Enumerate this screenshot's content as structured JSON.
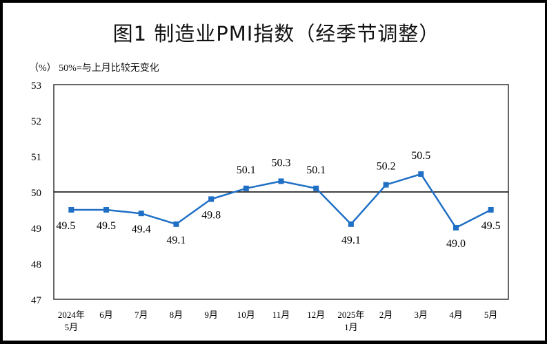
{
  "chart_data": {
    "type": "line",
    "title": "图1  制造业PMI指数（经季节调整）",
    "subtitle": "（%） 50%=与上月比较无变化",
    "categories": [
      [
        "2024年",
        "5月"
      ],
      [
        "6月"
      ],
      [
        "7月"
      ],
      [
        "8月"
      ],
      [
        "9月"
      ],
      [
        "10月"
      ],
      [
        "11月"
      ],
      [
        "12月"
      ],
      [
        "2025年",
        "1月"
      ],
      [
        "2月"
      ],
      [
        "3月"
      ],
      [
        "4月"
      ],
      [
        "5月"
      ]
    ],
    "series": [
      {
        "values": [
          49.5,
          49.5,
          49.4,
          49.1,
          49.8,
          50.1,
          50.3,
          50.1,
          49.1,
          50.2,
          50.5,
          49.0,
          49.5
        ]
      }
    ],
    "data_labels": [
      "49.5",
      "49.5",
      "49.4",
      "49.1",
      "49.8",
      "50.1",
      "50.3",
      "50.1",
      "49.1",
      "50.2",
      "50.5",
      "49.0",
      "49.5"
    ],
    "ylim": [
      47,
      53
    ],
    "yticks": [
      47,
      48,
      49,
      50,
      51,
      52,
      53
    ],
    "reference_line": 50,
    "grid": false,
    "line_color": "#1f6fc5",
    "reference_color": "#000000"
  }
}
